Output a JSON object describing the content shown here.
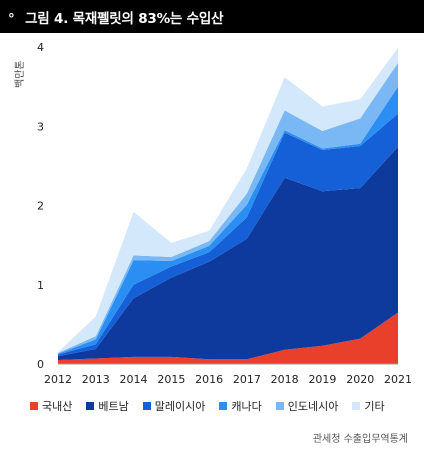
{
  "title": "그림 4. 목재펠릿의 83%는 수입산",
  "title_prefix": "°",
  "source": "관세청 수출입무역통계",
  "chart_data": {
    "type": "area",
    "stacked": true,
    "unit_label": "백만톤",
    "x": [
      "2012",
      "2013",
      "2014",
      "2015",
      "2016",
      "2017",
      "2018",
      "2019",
      "2020",
      "2021"
    ],
    "ylim": [
      0,
      4
    ],
    "yticks": [
      0,
      1,
      2,
      3,
      4
    ],
    "grid": false,
    "legend_position": "bottom",
    "series": [
      {
        "name": "국내산",
        "color": "#e8402a",
        "values": [
          0.05,
          0.07,
          0.09,
          0.09,
          0.06,
          0.06,
          0.18,
          0.23,
          0.32,
          0.65
        ]
      },
      {
        "name": "베트남",
        "color": "#0d3a9c",
        "values": [
          0.05,
          0.12,
          0.74,
          1.0,
          1.23,
          1.52,
          2.17,
          1.95,
          1.9,
          2.09
        ]
      },
      {
        "name": "말레이시아",
        "color": "#1560d6",
        "values": [
          0.02,
          0.06,
          0.17,
          0.14,
          0.12,
          0.27,
          0.57,
          0.52,
          0.53,
          0.42
        ]
      },
      {
        "name": "캐나다",
        "color": "#2b8ef3",
        "values": [
          0.01,
          0.06,
          0.31,
          0.07,
          0.08,
          0.16,
          0.03,
          0.02,
          0.03,
          0.34
        ]
      },
      {
        "name": "인도네시아",
        "color": "#7ab8f5",
        "values": [
          0.01,
          0.04,
          0.06,
          0.05,
          0.06,
          0.14,
          0.25,
          0.22,
          0.32,
          0.3
        ]
      },
      {
        "name": "기타",
        "color": "#d4e8fb",
        "values": [
          0.01,
          0.25,
          0.55,
          0.18,
          0.13,
          0.32,
          0.42,
          0.31,
          0.24,
          0.19
        ]
      }
    ]
  }
}
